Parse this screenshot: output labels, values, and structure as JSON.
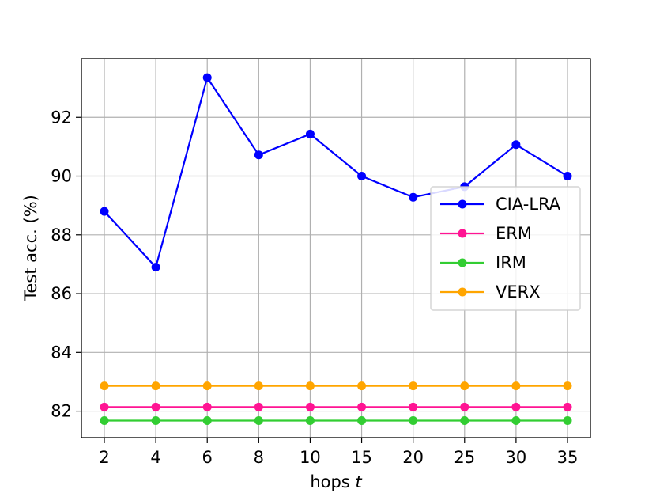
{
  "chart_data": {
    "type": "line",
    "categories": [
      "2",
      "4",
      "6",
      "8",
      "10",
      "15",
      "20",
      "25",
      "30",
      "35"
    ],
    "xlabel": "hops",
    "xlabel_var": "t",
    "ylabel": "Test acc. (%)",
    "ylim": [
      81.1,
      94.0
    ],
    "yticks": [
      82,
      84,
      86,
      88,
      90,
      92
    ],
    "grid": true,
    "legend": "center-right",
    "series": [
      {
        "name": "CIA-LRA",
        "color": "#0000ff",
        "values": [
          88.8,
          86.9,
          93.35,
          90.72,
          91.43,
          90.0,
          89.28,
          89.64,
          91.07,
          90.0
        ]
      },
      {
        "name": "ERM",
        "color": "#ff1493",
        "values": [
          82.14,
          82.14,
          82.14,
          82.14,
          82.14,
          82.14,
          82.14,
          82.14,
          82.14,
          82.14
        ]
      },
      {
        "name": "IRM",
        "color": "#32cd32",
        "values": [
          81.68,
          81.68,
          81.68,
          81.68,
          81.68,
          81.68,
          81.68,
          81.68,
          81.68,
          81.68
        ]
      },
      {
        "name": "VERX",
        "color": "#ffa500",
        "values": [
          82.86,
          82.86,
          82.86,
          82.86,
          82.86,
          82.86,
          82.86,
          82.86,
          82.86,
          82.86
        ]
      }
    ]
  }
}
